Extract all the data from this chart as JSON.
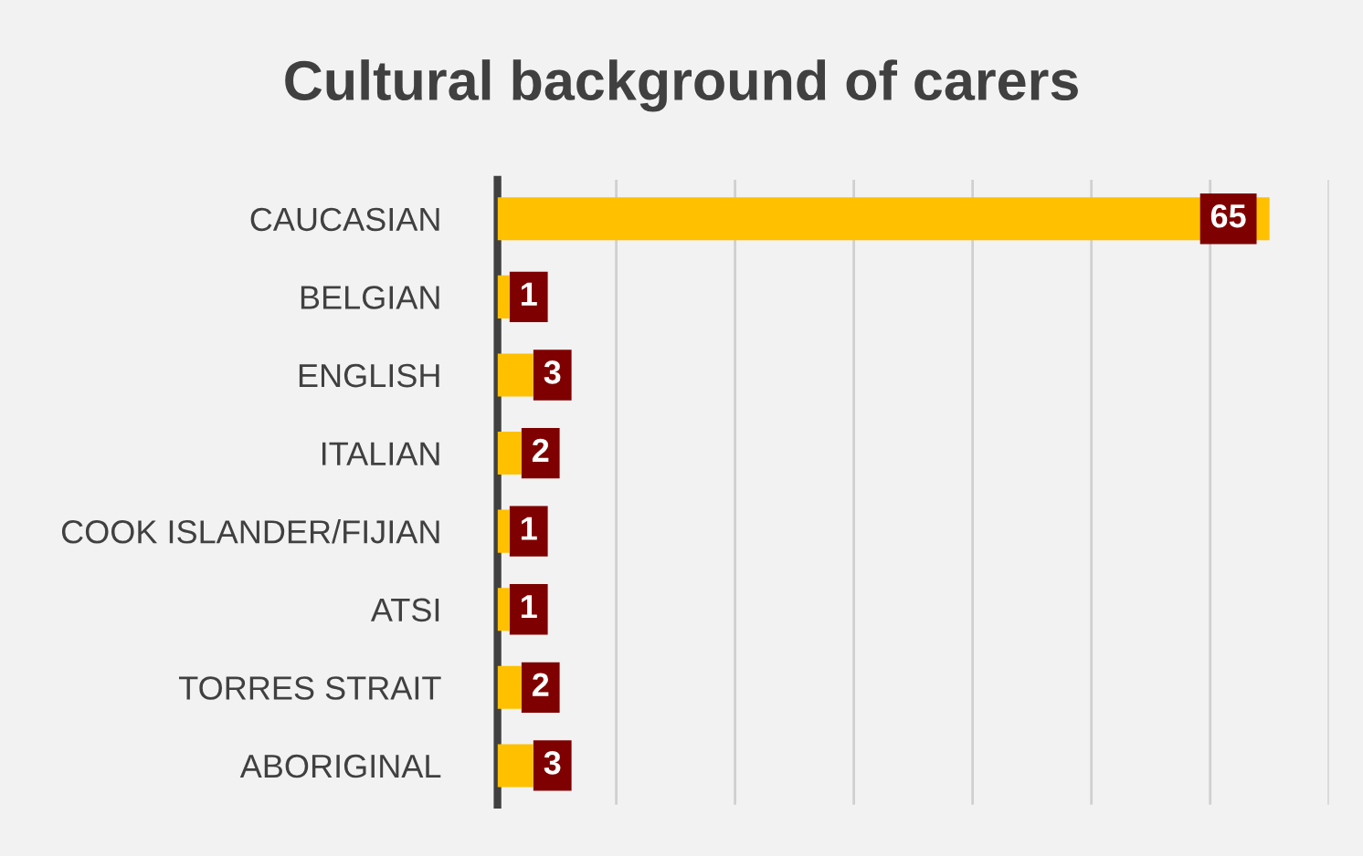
{
  "chart_data": {
    "type": "bar",
    "orientation": "horizontal",
    "title": "Cultural background of carers",
    "categories": [
      "CAUCASIAN",
      "BELGIAN",
      "ENGLISH",
      "ITALIAN",
      "COOK ISLANDER/FIJIAN",
      "ATSI",
      "TORRES STRAIT",
      "ABORIGINAL"
    ],
    "values": [
      65,
      1,
      3,
      2,
      1,
      1,
      2,
      3
    ],
    "color": "#ffc000",
    "xlim": [
      0,
      70
    ],
    "xticks": [
      {
        "value": 0,
        "label": null
      },
      {
        "value": 10,
        "label": null
      },
      {
        "value": 20,
        "label": null
      },
      {
        "value": 30,
        "label": null
      },
      {
        "value": 40,
        "label": null
      },
      {
        "value": 50,
        "label": null
      },
      {
        "value": 60,
        "label": null
      },
      {
        "value": 70,
        "label": null
      }
    ],
    "grid": "x",
    "tick_labels": "y",
    "data_labels": true
  }
}
